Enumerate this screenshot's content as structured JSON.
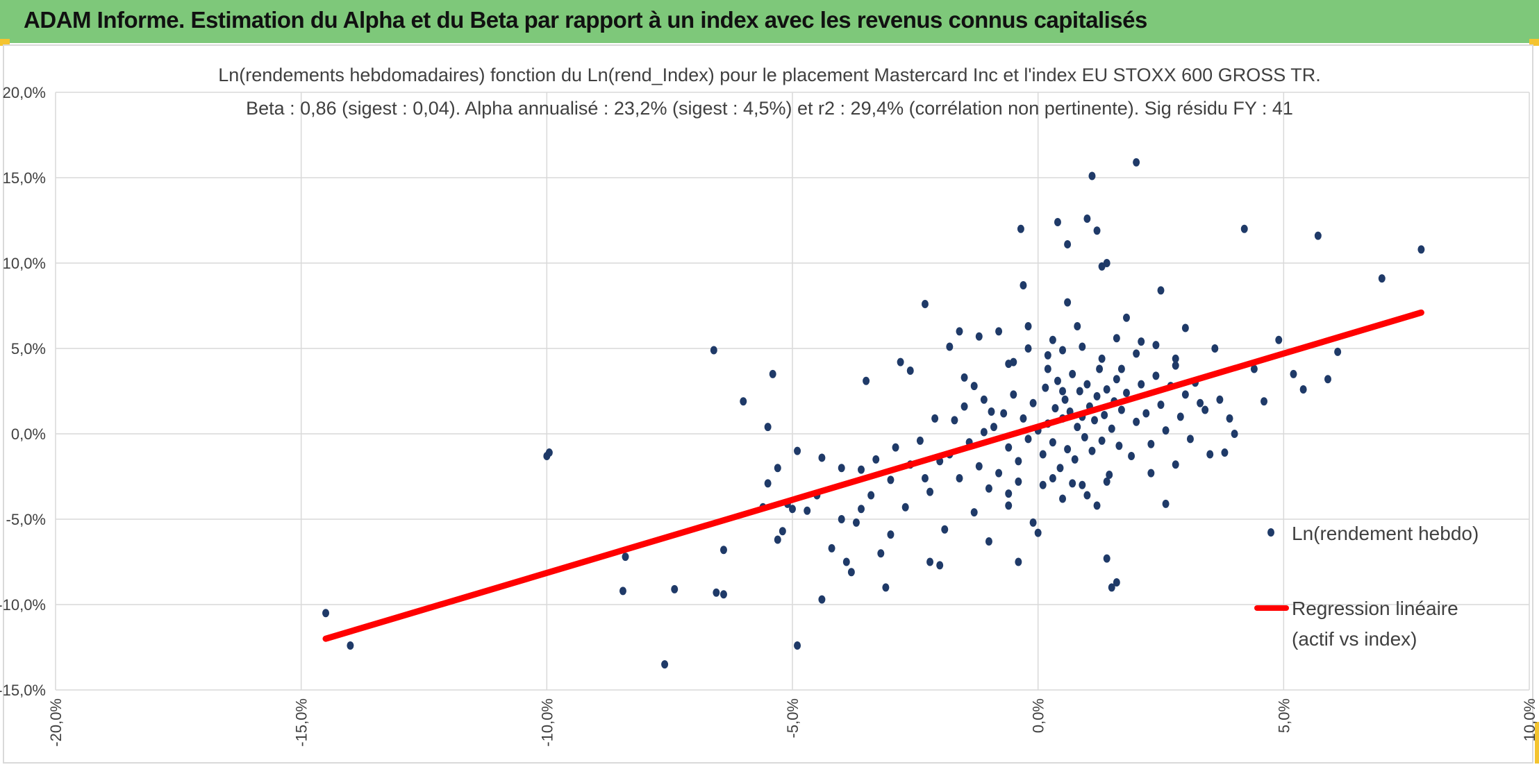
{
  "header": {
    "title": "ADAM Informe. Estimation du Alpha et du Beta par rapport à un index avec les revenus connus capitalisés"
  },
  "colors": {
    "header_bg": "#7ec87a",
    "accent": "#f4c430",
    "points": "#1f3a68",
    "regression": "#ff0000",
    "grid": "#d9d9d9"
  },
  "chart_data": {
    "type": "scatter",
    "title": "Ln(rendements hebdomadaires) fonction du Ln(rend_Index) pour le placement Mastercard Inc et l'index EU STOXX 600 GROSS TR.",
    "subtitle": "Beta : 0,86 (sigest : 0,04). Alpha annualisé : 23,2% (sigest : 4,5%) et r2 : 29,4% (corrélation non pertinente). Sig résidu FY : 41",
    "xlim": [
      -20,
      10
    ],
    "ylim": [
      -15,
      20
    ],
    "x_ticks": [
      "-20,0%",
      "-15,0%",
      "-10,0%",
      "-5,0%",
      "0,0%",
      "5,0%",
      "10,0%"
    ],
    "y_ticks": [
      "-15,0%",
      "-10,0%",
      "-5,0%",
      "0,0%",
      "5,0%",
      "10,0%",
      "15,0%",
      "20,0%"
    ],
    "grid": true,
    "legend_position": "right",
    "series": [
      {
        "name": "Ln(rendement hebdo)",
        "kind": "scatter",
        "points": [
          [
            -14.5,
            -10.5
          ],
          [
            -14.0,
            -12.4
          ],
          [
            -10.0,
            -1.3
          ],
          [
            -9.95,
            -1.1
          ],
          [
            -8.4,
            -7.2
          ],
          [
            -8.45,
            -9.2
          ],
          [
            -7.6,
            -13.5
          ],
          [
            -7.4,
            -9.1
          ],
          [
            -6.6,
            4.9
          ],
          [
            -6.55,
            -9.3
          ],
          [
            -6.4,
            -9.4
          ],
          [
            -6.4,
            -6.8
          ],
          [
            -6.0,
            1.9
          ],
          [
            -5.5,
            0.4
          ],
          [
            -5.5,
            -2.9
          ],
          [
            -5.6,
            -4.3
          ],
          [
            -5.4,
            3.5
          ],
          [
            -5.3,
            -2.0
          ],
          [
            -5.3,
            -6.2
          ],
          [
            -5.2,
            -5.7
          ],
          [
            -5.1,
            -4.1
          ],
          [
            -5.0,
            -4.4
          ],
          [
            -4.9,
            -1.0
          ],
          [
            -4.9,
            -12.4
          ],
          [
            -4.7,
            -4.5
          ],
          [
            -4.5,
            -3.6
          ],
          [
            -4.4,
            -1.4
          ],
          [
            -4.4,
            -9.7
          ],
          [
            -4.2,
            -6.7
          ],
          [
            -4.0,
            -2.0
          ],
          [
            -4.0,
            -5.0
          ],
          [
            -3.9,
            -7.5
          ],
          [
            -3.8,
            -8.1
          ],
          [
            -3.7,
            -5.2
          ],
          [
            -3.6,
            -4.4
          ],
          [
            -3.5,
            3.1
          ],
          [
            -3.3,
            -1.5
          ],
          [
            -3.2,
            -7.0
          ],
          [
            -3.1,
            -9.0
          ],
          [
            -3.0,
            -5.9
          ],
          [
            -2.8,
            4.2
          ],
          [
            -2.6,
            3.7
          ],
          [
            -2.3,
            -2.6
          ],
          [
            -2.3,
            7.6
          ],
          [
            -2.2,
            -7.5
          ],
          [
            -2.0,
            -7.7
          ],
          [
            -1.9,
            -5.6
          ],
          [
            -1.8,
            5.1
          ],
          [
            -1.6,
            6.0
          ],
          [
            -1.5,
            3.3
          ],
          [
            -1.3,
            -4.6
          ],
          [
            -1.2,
            5.7
          ],
          [
            -1.1,
            2.0
          ],
          [
            -1.0,
            -6.3
          ],
          [
            -0.8,
            6.0
          ],
          [
            -0.6,
            -3.5
          ],
          [
            -0.5,
            4.2
          ],
          [
            -0.4,
            -7.5
          ],
          [
            -0.35,
            12.0
          ],
          [
            -0.3,
            8.7
          ],
          [
            -0.2,
            6.3
          ],
          [
            -0.1,
            -5.2
          ],
          [
            0.0,
            -5.8
          ],
          [
            0.2,
            3.8
          ],
          [
            0.3,
            5.5
          ],
          [
            0.4,
            12.4
          ],
          [
            0.5,
            2.5
          ],
          [
            0.6,
            7.7
          ],
          [
            0.6,
            11.1
          ],
          [
            0.8,
            6.3
          ],
          [
            0.9,
            -3.0
          ],
          [
            1.0,
            12.6
          ],
          [
            1.1,
            15.1
          ],
          [
            1.2,
            11.9
          ],
          [
            1.3,
            9.8
          ],
          [
            1.4,
            10.0
          ],
          [
            1.4,
            -7.3
          ],
          [
            1.5,
            -9.0
          ],
          [
            1.6,
            -8.7
          ],
          [
            1.7,
            3.8
          ],
          [
            1.8,
            6.8
          ],
          [
            2.0,
            15.9
          ],
          [
            2.1,
            5.4
          ],
          [
            2.3,
            -2.3
          ],
          [
            2.5,
            8.4
          ],
          [
            2.6,
            -4.1
          ],
          [
            2.8,
            4.0
          ],
          [
            3.0,
            6.2
          ],
          [
            3.3,
            1.8
          ],
          [
            3.6,
            5.0
          ],
          [
            3.8,
            -1.1
          ],
          [
            4.0,
            0.0
          ],
          [
            4.2,
            12.0
          ],
          [
            4.4,
            3.8
          ],
          [
            4.6,
            1.9
          ],
          [
            4.9,
            5.5
          ],
          [
            5.2,
            3.5
          ],
          [
            5.7,
            11.6
          ],
          [
            5.9,
            3.2
          ],
          [
            6.1,
            4.8
          ],
          [
            7.0,
            9.1
          ],
          [
            7.8,
            10.8
          ],
          [
            5.4,
            2.6
          ],
          [
            -0.9,
            0.4
          ],
          [
            -0.7,
            1.2
          ],
          [
            -0.6,
            -0.8
          ],
          [
            -0.5,
            2.3
          ],
          [
            -0.4,
            -1.6
          ],
          [
            -0.3,
            0.9
          ],
          [
            -0.2,
            -0.3
          ],
          [
            -0.1,
            1.8
          ],
          [
            0.0,
            0.2
          ],
          [
            0.1,
            -1.2
          ],
          [
            0.15,
            2.7
          ],
          [
            0.2,
            0.6
          ],
          [
            0.3,
            -0.5
          ],
          [
            0.35,
            1.5
          ],
          [
            0.4,
            3.1
          ],
          [
            0.45,
            -2.0
          ],
          [
            0.5,
            0.9
          ],
          [
            0.55,
            2.0
          ],
          [
            0.6,
            -0.9
          ],
          [
            0.65,
            1.3
          ],
          [
            0.7,
            3.5
          ],
          [
            0.75,
            -1.5
          ],
          [
            0.8,
            0.4
          ],
          [
            0.85,
            2.5
          ],
          [
            0.9,
            1.0
          ],
          [
            0.95,
            -0.2
          ],
          [
            1.0,
            2.9
          ],
          [
            1.05,
            1.6
          ],
          [
            1.1,
            -1.0
          ],
          [
            1.15,
            0.8
          ],
          [
            1.2,
            2.2
          ],
          [
            1.25,
            3.8
          ],
          [
            1.3,
            -0.4
          ],
          [
            1.35,
            1.1
          ],
          [
            1.4,
            2.6
          ],
          [
            1.45,
            -2.4
          ],
          [
            1.5,
            0.3
          ],
          [
            1.55,
            1.9
          ],
          [
            1.6,
            3.2
          ],
          [
            1.65,
            -0.7
          ],
          [
            1.7,
            1.4
          ],
          [
            1.8,
            2.4
          ],
          [
            1.9,
            -1.3
          ],
          [
            2.0,
            0.7
          ],
          [
            2.1,
            2.9
          ],
          [
            2.2,
            1.2
          ],
          [
            2.3,
            -0.6
          ],
          [
            2.4,
            3.4
          ],
          [
            2.5,
            1.7
          ],
          [
            2.6,
            0.2
          ],
          [
            2.7,
            2.8
          ],
          [
            2.8,
            -1.8
          ],
          [
            2.9,
            1.0
          ],
          [
            3.0,
            2.3
          ],
          [
            3.1,
            -0.3
          ],
          [
            3.2,
            3.0
          ],
          [
            3.4,
            1.4
          ],
          [
            3.5,
            -1.2
          ],
          [
            3.7,
            2.0
          ],
          [
            3.9,
            0.9
          ],
          [
            -1.8,
            -1.2
          ],
          [
            -1.7,
            0.8
          ],
          [
            -1.6,
            -2.6
          ],
          [
            -1.5,
            1.6
          ],
          [
            -1.4,
            -0.5
          ],
          [
            -1.3,
            2.8
          ],
          [
            -1.2,
            -1.9
          ],
          [
            -1.1,
            0.1
          ],
          [
            -1.0,
            -3.2
          ],
          [
            -0.95,
            1.3
          ],
          [
            -2.6,
            -1.8
          ],
          [
            -2.4,
            -0.4
          ],
          [
            -2.2,
            -3.4
          ],
          [
            -2.1,
            0.9
          ],
          [
            -2.0,
            -1.6
          ],
          [
            -3.0,
            -2.7
          ],
          [
            -2.9,
            -0.8
          ],
          [
            -2.7,
            -4.3
          ],
          [
            -3.4,
            -3.6
          ],
          [
            -3.6,
            -2.1
          ],
          [
            0.1,
            -3.0
          ],
          [
            0.3,
            -2.6
          ],
          [
            0.5,
            -3.8
          ],
          [
            0.7,
            -2.9
          ],
          [
            1.0,
            -3.6
          ],
          [
            1.2,
            -4.2
          ],
          [
            1.4,
            -2.8
          ],
          [
            -0.4,
            -2.8
          ],
          [
            -0.6,
            -4.2
          ],
          [
            -0.8,
            -2.3
          ],
          [
            0.2,
            4.6
          ],
          [
            0.5,
            4.9
          ],
          [
            0.9,
            5.1
          ],
          [
            1.3,
            4.4
          ],
          [
            1.6,
            5.6
          ],
          [
            2.0,
            4.7
          ],
          [
            2.4,
            5.2
          ],
          [
            2.8,
            4.4
          ],
          [
            -0.2,
            5.0
          ],
          [
            -0.6,
            4.1
          ]
        ]
      },
      {
        "name": "Regression linéaire",
        "name_line2": "(actif vs index)",
        "kind": "line",
        "points": [
          [
            -14.5,
            -12.0
          ],
          [
            7.8,
            7.1
          ]
        ]
      }
    ]
  }
}
